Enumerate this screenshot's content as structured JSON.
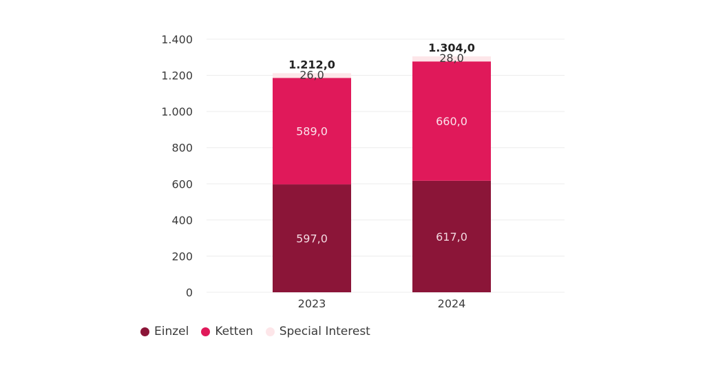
{
  "chart_data": {
    "type": "bar",
    "stacked": true,
    "categories": [
      "2023",
      "2024"
    ],
    "series": [
      {
        "name": "Einzel",
        "values": [
          597.0,
          617.0
        ],
        "color": "#8b1538",
        "label_color": "#f3d9e1"
      },
      {
        "name": "Ketten",
        "values": [
          589.0,
          660.0
        ],
        "color": "#e0195a",
        "label_color": "#fbe3eb"
      },
      {
        "name": "Special Interest",
        "values": [
          26.0,
          28.0
        ],
        "color": "#fde6e9",
        "label_color": "#3a3a3a"
      }
    ],
    "data_labels": [
      [
        "597,0",
        "617,0"
      ],
      [
        "589,0",
        "660,0"
      ],
      [
        "26,0",
        "28,0"
      ]
    ],
    "totals": [
      1212.0,
      1304.0
    ],
    "total_labels": [
      "1.212,0",
      "1.304,0"
    ],
    "y_ticks": [
      0,
      200,
      400,
      600,
      800,
      1000,
      1200,
      1400
    ],
    "y_tick_labels": [
      "0",
      "200",
      "400",
      "600",
      "800",
      "1.000",
      "1.200",
      "1.400"
    ],
    "ylim": [
      0,
      1400
    ],
    "title": "",
    "xlabel": "",
    "ylabel": "",
    "grid": true,
    "legend_position": "bottom-left"
  }
}
